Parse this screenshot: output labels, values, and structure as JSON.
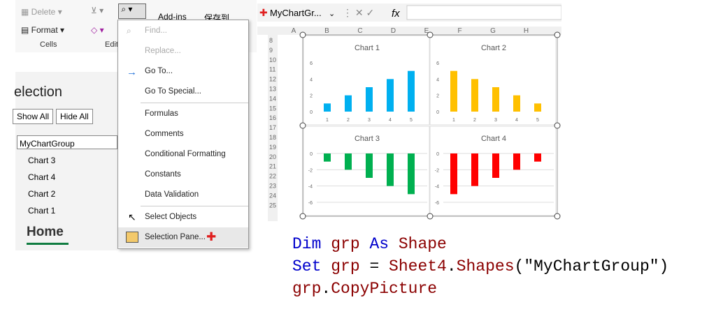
{
  "ribbon": {
    "delete": "Delete",
    "format": "Format",
    "cells": "Cells",
    "edit": "Edit",
    "addins": "Add-ins",
    "save": "保存到"
  },
  "menu": {
    "items": [
      "Find...",
      "Replace...",
      "Go To...",
      "Go To Special...",
      "Formulas",
      "Comments",
      "Conditional Formatting",
      "Constants",
      "Data Validation",
      "Select Objects",
      "Selection Pane..."
    ]
  },
  "selection_pane": {
    "title": "election",
    "show_all": "Show All",
    "hide_all": "Hide All",
    "group": "MyChartGroup",
    "items": [
      "Chart 3",
      "Chart 4",
      "Chart 2",
      "Chart 1"
    ],
    "tab": "Home"
  },
  "formula_bar": {
    "name_box": "MyChartGr...",
    "fx": "fx"
  },
  "sheet": {
    "columns": [
      "A",
      "B",
      "C",
      "D",
      "E",
      "F",
      "G",
      "H"
    ],
    "rows": [
      "8",
      "9",
      "10",
      "11",
      "12",
      "13",
      "14",
      "15",
      "16",
      "17",
      "18",
      "19",
      "20",
      "21",
      "22",
      "23",
      "24",
      "25"
    ]
  },
  "chart_data": [
    {
      "type": "bar",
      "title": "Chart 1",
      "categories": [
        "1",
        "2",
        "3",
        "4",
        "5"
      ],
      "values": [
        1,
        2,
        3,
        4,
        5
      ],
      "color": "#00b0f0",
      "ylim": [
        0,
        6
      ],
      "yticks": [
        0,
        2,
        4,
        6
      ],
      "grid": false
    },
    {
      "type": "bar",
      "title": "Chart 2",
      "categories": [
        "1",
        "2",
        "3",
        "4",
        "5"
      ],
      "values": [
        5,
        4,
        3,
        2,
        1
      ],
      "color": "#ffc000",
      "ylim": [
        0,
        6
      ],
      "yticks": [
        0,
        2,
        4,
        6
      ],
      "grid": false
    },
    {
      "type": "bar",
      "title": "Chart 3",
      "values": [
        -1,
        -2,
        -3,
        -4,
        -5
      ],
      "color": "#00b050",
      "ylim": [
        -6,
        0
      ],
      "yticks": [
        0,
        -2,
        -4,
        -6
      ],
      "grid": true
    },
    {
      "type": "bar",
      "title": "Chart 4",
      "values": [
        -5,
        -4,
        -3,
        -2,
        -1
      ],
      "color": "#ff0000",
      "ylim": [
        -6,
        0
      ],
      "yticks": [
        0,
        -2,
        -4,
        -6
      ],
      "grid": true
    }
  ],
  "code": {
    "lines": [
      [
        {
          "text": "Dim",
          "color": "#0000cc"
        },
        {
          "text": " grp ",
          "color": "#8b0000"
        },
        {
          "text": "As",
          "color": "#0000cc"
        },
        {
          "text": " Shape",
          "color": "#8b0000"
        }
      ],
      [
        {
          "text": "Set",
          "color": "#0000cc"
        },
        {
          "text": " grp ",
          "color": "#8b0000"
        },
        {
          "text": "= ",
          "color": "#000000"
        },
        {
          "text": "Sheet4",
          "color": "#8b0000"
        },
        {
          "text": ".",
          "color": "#000000"
        },
        {
          "text": "Shapes",
          "color": "#8b0000"
        },
        {
          "text": "(\"MyChartGroup\")",
          "color": "#000000"
        }
      ],
      [
        {
          "text": "grp",
          "color": "#8b0000"
        },
        {
          "text": ".",
          "color": "#000000"
        },
        {
          "text": "CopyPicture",
          "color": "#8b0000"
        }
      ]
    ]
  }
}
